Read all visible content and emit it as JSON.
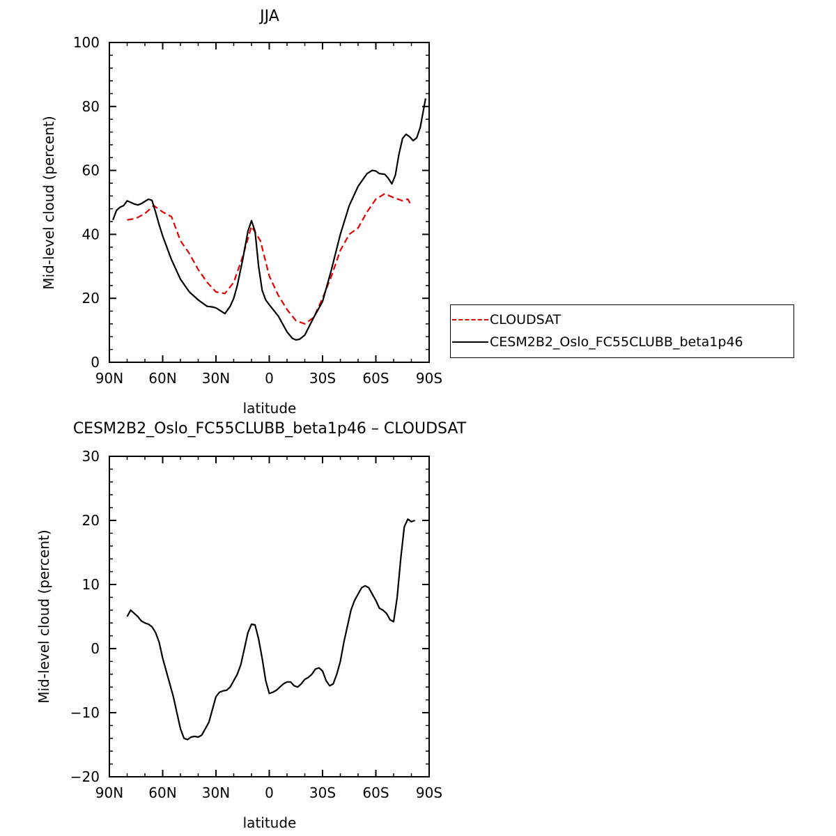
{
  "chart_data": [
    {
      "type": "line",
      "title": "JJA",
      "xlabel": "latitude",
      "ylabel": "Mid-level cloud (percent)",
      "xlim": [
        90,
        -90
      ],
      "ylim": [
        0,
        100
      ],
      "xticks": [
        90,
        60,
        30,
        0,
        -30,
        -60,
        -90
      ],
      "xtick_labels": [
        "90N",
        "60N",
        "30N",
        "0",
        "30S",
        "60S",
        "90S"
      ],
      "yticks": [
        0,
        20,
        40,
        60,
        80,
        100
      ],
      "ytick_labels": [
        "0",
        "20",
        "40",
        "60",
        "80",
        "100"
      ],
      "legend_position": "right",
      "series": [
        {
          "name": "CLOUDSAT",
          "color": "#e00000",
          "style": "dashed",
          "x": [
            80,
            75,
            70,
            65,
            60,
            55,
            50,
            45,
            40,
            35,
            30,
            25,
            20,
            15,
            10,
            5,
            0,
            -5,
            -10,
            -15,
            -20,
            -25,
            -30,
            -35,
            -40,
            -45,
            -50,
            -55,
            -60,
            -65,
            -70,
            -75,
            -78,
            -80
          ],
          "y": [
            44.5,
            45,
            46.5,
            49,
            47,
            45.5,
            38,
            34,
            29,
            25,
            22,
            21.5,
            25,
            33,
            42.5,
            38,
            27,
            21,
            16.5,
            13,
            12,
            14,
            20,
            27,
            35,
            40,
            42,
            47,
            51,
            52.7,
            51.5,
            50.5,
            51,
            49
          ]
        },
        {
          "name": "CESM2B2_Oslo_FC55CLUBB_beta1p46",
          "color": "#000000",
          "style": "solid",
          "x": [
            88,
            86,
            84,
            82,
            80,
            78,
            76,
            74,
            72,
            70,
            68,
            66,
            64,
            62,
            60,
            55,
            50,
            45,
            40,
            35,
            32,
            30,
            28,
            25,
            22,
            20,
            18,
            15,
            12,
            10,
            8,
            6,
            4,
            2,
            0,
            -5,
            -10,
            -13,
            -15,
            -17,
            -20,
            -25,
            -30,
            -35,
            -40,
            -45,
            -50,
            -55,
            -58,
            -60,
            -62,
            -65,
            -67,
            -69,
            -71,
            -73,
            -75,
            -77,
            -79,
            -81,
            -83,
            -85,
            -88
          ],
          "y": [
            44.5,
            47.5,
            48.5,
            49,
            50.5,
            50,
            49.5,
            49.2,
            49.6,
            50.3,
            51,
            50.6,
            47,
            43,
            39.5,
            32,
            26,
            22,
            19.5,
            17.5,
            17.3,
            17,
            16.3,
            15.2,
            17.5,
            20,
            24,
            32,
            41,
            44.3,
            41,
            30,
            22.5,
            19.5,
            18,
            14.5,
            9.5,
            7.5,
            7,
            7.2,
            8.5,
            14,
            19,
            29,
            40,
            49,
            55,
            59,
            60,
            59.8,
            59,
            58.8,
            57.5,
            55.8,
            58.5,
            65,
            70,
            71.3,
            70.5,
            69.3,
            70.2,
            73.5,
            82.5
          ]
        }
      ]
    },
    {
      "type": "line",
      "title": "CESM2B2_Oslo_FC55CLUBB_beta1p46 – CLOUDSAT",
      "xlabel": "latitude",
      "ylabel": "Mid-level cloud (percent)",
      "xlim": [
        90,
        -90
      ],
      "ylim": [
        -20,
        30
      ],
      "xticks": [
        90,
        60,
        30,
        0,
        -30,
        -60,
        -90
      ],
      "xtick_labels": [
        "90N",
        "60N",
        "30N",
        "0",
        "30S",
        "60S",
        "90S"
      ],
      "yticks": [
        -20,
        -10,
        0,
        10,
        20,
        30
      ],
      "ytick_labels": [
        "−20",
        "−10",
        "0",
        "10",
        "20",
        "30"
      ],
      "series": [
        {
          "color": "#000000",
          "style": "solid",
          "x": [
            80,
            78,
            76,
            74,
            72,
            70,
            68,
            66,
            64,
            62,
            60,
            58,
            56,
            54,
            52,
            50,
            48,
            46,
            44,
            42,
            40,
            38,
            36,
            34,
            32,
            30,
            28,
            26,
            24,
            22,
            20,
            18,
            16,
            14,
            12,
            10,
            8,
            6,
            4,
            2,
            0,
            -2,
            -4,
            -6,
            -8,
            -10,
            -12,
            -14,
            -16,
            -18,
            -20,
            -22,
            -24,
            -26,
            -28,
            -30,
            -32,
            -34,
            -36,
            -38,
            -40,
            -42,
            -44,
            -46,
            -48,
            -50,
            -52,
            -54,
            -56,
            -58,
            -60,
            -62,
            -64,
            -66,
            -68,
            -70,
            -72,
            -74,
            -76,
            -78,
            -80,
            -82
          ],
          "y": [
            5,
            6,
            5.5,
            5,
            4.3,
            4,
            3.8,
            3.4,
            2.5,
            1,
            -1.5,
            -3.5,
            -5.5,
            -7.5,
            -10,
            -12.5,
            -14,
            -14.2,
            -13.8,
            -13.7,
            -13.8,
            -13.5,
            -12.5,
            -11.5,
            -9.5,
            -7.5,
            -6.8,
            -6.6,
            -6.5,
            -6,
            -5,
            -4,
            -2.5,
            0,
            2.5,
            3.8,
            3.7,
            1.5,
            -1.5,
            -5,
            -7,
            -6.8,
            -6.5,
            -6,
            -5.5,
            -5.2,
            -5.2,
            -5.8,
            -6,
            -5.5,
            -4.8,
            -4.5,
            -4,
            -3.2,
            -3,
            -3.5,
            -5,
            -5.8,
            -5.5,
            -4,
            -2,
            1,
            3.5,
            6,
            7.5,
            8.5,
            9.5,
            9.8,
            9.5,
            8.5,
            7.5,
            6.3,
            6,
            5.5,
            4.5,
            4.2,
            8,
            14,
            19,
            20.2,
            19.8,
            20
          ]
        }
      ]
    }
  ]
}
